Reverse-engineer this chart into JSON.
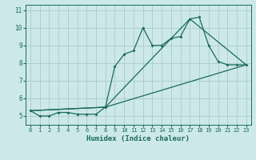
{
  "xlabel": "Humidex (Indice chaleur)",
  "xlim": [
    -0.5,
    23.5
  ],
  "ylim": [
    4.5,
    11.3
  ],
  "xticks": [
    0,
    1,
    2,
    3,
    4,
    5,
    6,
    7,
    8,
    9,
    10,
    11,
    12,
    13,
    14,
    15,
    16,
    17,
    18,
    19,
    20,
    21,
    22,
    23
  ],
  "yticks": [
    5,
    6,
    7,
    8,
    9,
    10,
    11
  ],
  "bg_color": "#cce8e8",
  "line_color": "#1a6b5a",
  "grid_color": "#aacccc",
  "line1_x": [
    0,
    1,
    2,
    3,
    4,
    5,
    6,
    7,
    8,
    9,
    10,
    11,
    12,
    13,
    14,
    15,
    16,
    17,
    18,
    19,
    20,
    21,
    22,
    23
  ],
  "line1_y": [
    5.3,
    5.0,
    5.0,
    5.2,
    5.2,
    5.1,
    5.1,
    5.1,
    5.5,
    7.8,
    8.5,
    8.7,
    10.0,
    9.0,
    9.0,
    9.4,
    9.5,
    10.5,
    10.6,
    9.0,
    8.1,
    7.9,
    7.9,
    7.9
  ],
  "line2_x": [
    0,
    8,
    17,
    23
  ],
  "line2_y": [
    5.3,
    5.5,
    10.5,
    7.9
  ],
  "line3_x": [
    0,
    8,
    23
  ],
  "line3_y": [
    5.3,
    5.5,
    7.9
  ]
}
